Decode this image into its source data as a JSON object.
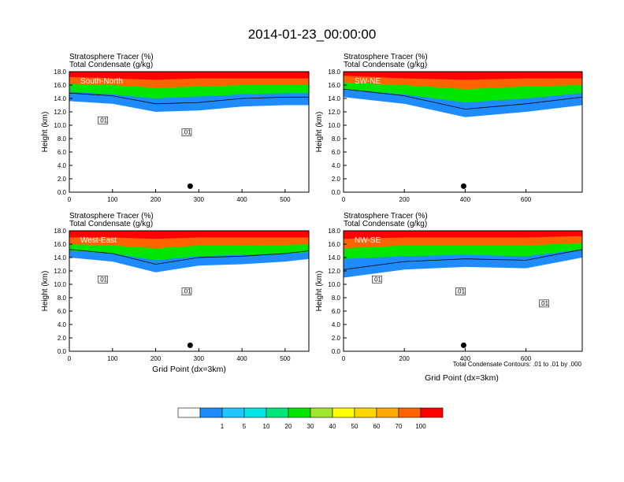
{
  "figure": {
    "title": "2014-01-23_00:00:00",
    "contour_note": "Total Condensate Contours: .01 to .01 by .000",
    "xlabel": "Grid Point (dx=3km)",
    "colorbar": {
      "colors": [
        "#ffffff",
        "#1e8cff",
        "#1ec8ff",
        "#00e6e6",
        "#00e678",
        "#00e600",
        "#a0e632",
        "#ffff00",
        "#ffd700",
        "#ffaa00",
        "#ff6400",
        "#ff0000"
      ],
      "labels": [
        "1",
        "5",
        "10",
        "20",
        "30",
        "40",
        "50",
        "60",
        "70",
        "100"
      ]
    }
  },
  "chart_data": [
    {
      "type": "heatmap",
      "panel": "South-North",
      "line1": "Stratosphere Tracer   (%)",
      "line2": "Total Condensate   (g/kg)",
      "ylabel": "Height (km)",
      "xlabel": "",
      "xlim": [
        0,
        555
      ],
      "ylim": [
        0,
        18
      ],
      "xticks": [
        0,
        100,
        200,
        300,
        400,
        500
      ],
      "yticks": [
        "0.0",
        "2.0",
        "4.0",
        "6.0",
        "8.0",
        "10.0",
        "12.0",
        "14.0",
        "16.0",
        "18.0"
      ],
      "marker_x": 280,
      "contour_labels": [
        ".01",
        ".01"
      ],
      "series": [
        {
          "name": "1",
          "values": [
            [
              0,
              13.6
            ],
            [
              100,
              13.2
            ],
            [
              200,
              12.0
            ],
            [
              300,
              12.2
            ],
            [
              400,
              12.8
            ],
            [
              500,
              13.0
            ],
            [
              555,
              13.0
            ]
          ]
        },
        {
          "name": "30",
          "values": [
            [
              0,
              15.0
            ],
            [
              100,
              14.6
            ],
            [
              200,
              14.0
            ],
            [
              300,
              14.3
            ],
            [
              400,
              14.6
            ],
            [
              500,
              14.8
            ],
            [
              555,
              14.8
            ]
          ]
        },
        {
          "name": "70",
          "values": [
            [
              0,
              16.2
            ],
            [
              100,
              16.0
            ],
            [
              200,
              15.6
            ],
            [
              300,
              15.8
            ],
            [
              400,
              16.0
            ],
            [
              500,
              16.0
            ],
            [
              555,
              16.0
            ]
          ]
        },
        {
          "name": "100",
          "values": [
            [
              0,
              17.2
            ],
            [
              100,
              17.0
            ],
            [
              200,
              16.8
            ],
            [
              300,
              17.0
            ],
            [
              400,
              17.0
            ],
            [
              500,
              17.0
            ],
            [
              555,
              17.0
            ]
          ]
        }
      ]
    },
    {
      "type": "heatmap",
      "panel": "SW-NE",
      "line1": "Stratosphere Tracer   (%)",
      "line2": "Total Condensate   (g/kg)",
      "ylabel": "Height (km)",
      "xlabel": "",
      "xlim": [
        0,
        785
      ],
      "ylim": [
        0,
        18
      ],
      "xticks": [
        0,
        200,
        400,
        600
      ],
      "yticks": [
        "0.0",
        "2.0",
        "4.0",
        "6.0",
        "8.0",
        "10.0",
        "12.0",
        "14.0",
        "16.0",
        "18.0"
      ],
      "marker_x": 395,
      "contour_labels": [],
      "series": [
        {
          "name": "1",
          "values": [
            [
              0,
              14.2
            ],
            [
              200,
              13.2
            ],
            [
              400,
              11.2
            ],
            [
              600,
              12.0
            ],
            [
              785,
              13.0
            ]
          ]
        },
        {
          "name": "30",
          "values": [
            [
              0,
              15.4
            ],
            [
              200,
              14.6
            ],
            [
              400,
              13.4
            ],
            [
              600,
              14.0
            ],
            [
              785,
              14.8
            ]
          ]
        },
        {
          "name": "70",
          "values": [
            [
              0,
              16.4
            ],
            [
              200,
              16.0
            ],
            [
              400,
              15.4
            ],
            [
              600,
              15.8
            ],
            [
              785,
              16.0
            ]
          ]
        },
        {
          "name": "100",
          "values": [
            [
              0,
              17.4
            ],
            [
              200,
              17.0
            ],
            [
              400,
              16.8
            ],
            [
              600,
              17.0
            ],
            [
              785,
              17.0
            ]
          ]
        }
      ]
    },
    {
      "type": "heatmap",
      "panel": "West-East",
      "line1": "Stratosphere Tracer   (%)",
      "line2": "Total Condensate   (g/kg)",
      "ylabel": "Height (km)",
      "xlabel": "Grid Point (dx=3km)",
      "xlim": [
        0,
        555
      ],
      "ylim": [
        0,
        18
      ],
      "xticks": [
        0,
        100,
        200,
        300,
        400,
        500
      ],
      "yticks": [
        "0.0",
        "2.0",
        "4.0",
        "6.0",
        "8.0",
        "10.0",
        "12.0",
        "14.0",
        "16.0",
        "18.0"
      ],
      "marker_x": 280,
      "contour_labels": [
        ".01",
        ".01"
      ],
      "series": [
        {
          "name": "1",
          "values": [
            [
              0,
              14.0
            ],
            [
              100,
              13.4
            ],
            [
              200,
              11.8
            ],
            [
              300,
              12.8
            ],
            [
              400,
              13.0
            ],
            [
              500,
              13.4
            ],
            [
              555,
              13.8
            ]
          ]
        },
        {
          "name": "30",
          "values": [
            [
              0,
              15.0
            ],
            [
              100,
              14.6
            ],
            [
              200,
              13.6
            ],
            [
              300,
              14.2
            ],
            [
              400,
              14.4
            ],
            [
              500,
              14.6
            ],
            [
              555,
              14.8
            ]
          ]
        },
        {
          "name": "70",
          "values": [
            [
              0,
              16.0
            ],
            [
              100,
              15.8
            ],
            [
              200,
              15.4
            ],
            [
              300,
              15.8
            ],
            [
              400,
              15.8
            ],
            [
              500,
              15.9
            ],
            [
              555,
              16.0
            ]
          ]
        },
        {
          "name": "100",
          "values": [
            [
              0,
              17.0
            ],
            [
              100,
              17.0
            ],
            [
              200,
              16.8
            ],
            [
              300,
              17.0
            ],
            [
              400,
              17.0
            ],
            [
              500,
              17.0
            ],
            [
              555,
              17.0
            ]
          ]
        }
      ]
    },
    {
      "type": "heatmap",
      "panel": "NW-SE",
      "line1": "Stratosphere Tracer   (%)",
      "line2": "Total Condensate   (g/kg)",
      "ylabel": "Height (km)",
      "xlabel": "Grid Point (dx=3km)",
      "xlim": [
        0,
        785
      ],
      "ylim": [
        0,
        18
      ],
      "xticks": [
        0,
        200,
        400,
        600
      ],
      "yticks": [
        "0.0",
        "2.0",
        "4.0",
        "6.0",
        "8.0",
        "10.0",
        "12.0",
        "14.0",
        "16.0",
        "18.0"
      ],
      "marker_x": 395,
      "contour_labels": [
        ".01",
        ".01",
        ".01"
      ],
      "series": [
        {
          "name": "1",
          "values": [
            [
              0,
              11.0
            ],
            [
              200,
              12.2
            ],
            [
              400,
              12.6
            ],
            [
              600,
              12.4
            ],
            [
              785,
              14.0
            ]
          ]
        },
        {
          "name": "30",
          "values": [
            [
              0,
              13.8
            ],
            [
              200,
              14.2
            ],
            [
              400,
              14.4
            ],
            [
              600,
              14.2
            ],
            [
              785,
              15.2
            ]
          ]
        },
        {
          "name": "70",
          "values": [
            [
              0,
              15.4
            ],
            [
              200,
              15.8
            ],
            [
              400,
              15.8
            ],
            [
              600,
              15.8
            ],
            [
              785,
              16.2
            ]
          ]
        },
        {
          "name": "100",
          "values": [
            [
              0,
              16.8
            ],
            [
              200,
              17.0
            ],
            [
              400,
              17.0
            ],
            [
              600,
              17.0
            ],
            [
              785,
              17.2
            ]
          ]
        }
      ]
    }
  ]
}
